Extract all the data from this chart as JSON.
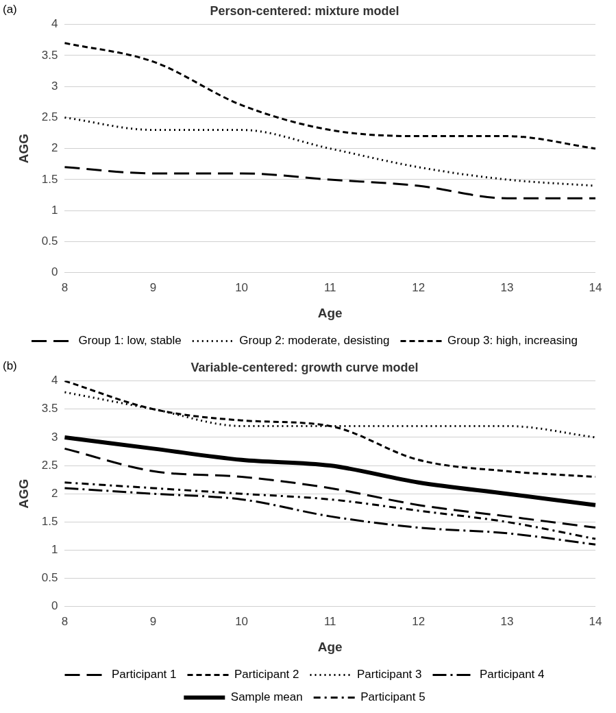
{
  "chart_data": [
    {
      "type": "line",
      "title": "Person-centered: mixture model",
      "xlabel": "Age",
      "ylabel": "AGG",
      "annotations": [
        "(a)"
      ],
      "categories": [
        "8",
        "9",
        "10",
        "11",
        "12",
        "13",
        "14"
      ],
      "series": [
        {
          "name": "Group 1: low, stable",
          "color": "#000000",
          "line_style": "dashed",
          "values": [
            1.7,
            1.6,
            1.6,
            1.5,
            1.4,
            1.2,
            1.2
          ]
        },
        {
          "name": "Group 2: moderate, desisting",
          "color": "#000000",
          "line_style": "dotted",
          "values": [
            2.5,
            2.3,
            2.3,
            2.0,
            1.7,
            1.5,
            1.4
          ]
        },
        {
          "name": "Group 3: high, increasing",
          "color": "#000000",
          "line_style": "dashed",
          "values": [
            3.7,
            3.4,
            2.7,
            2.3,
            2.2,
            2.2,
            2.0
          ]
        }
      ],
      "ylim": [
        0,
        4
      ],
      "yticks": [
        0,
        0.5,
        1,
        1.5,
        2,
        2.5,
        3,
        3.5,
        4
      ],
      "grid": "y",
      "legend": "bottom",
      "marker": "none"
    },
    {
      "type": "line",
      "title": "Variable-centered: growth curve model",
      "xlabel": "Age",
      "ylabel": "AGG",
      "annotations": [
        "(b)"
      ],
      "categories": [
        "8",
        "9",
        "10",
        "11",
        "12",
        "13",
        "14"
      ],
      "series": [
        {
          "name": "Participant 1",
          "color": "#000000",
          "line_style": "dashed",
          "values": [
            2.8,
            2.4,
            2.3,
            2.1,
            1.8,
            1.6,
            1.4
          ]
        },
        {
          "name": "Participant 2",
          "color": "#000000",
          "line_style": "dashed",
          "values": [
            4.0,
            3.5,
            3.3,
            3.2,
            2.6,
            2.4,
            2.3
          ]
        },
        {
          "name": "Participant 3",
          "color": "#000000",
          "line_style": "dotted",
          "values": [
            3.8,
            3.5,
            3.2,
            3.2,
            3.2,
            3.2,
            3.0
          ]
        },
        {
          "name": "Participant 4",
          "color": "#000000",
          "line_style": "dashed",
          "values": [
            2.1,
            2.0,
            1.9,
            1.6,
            1.4,
            1.3,
            1.1
          ]
        },
        {
          "name": "Sample mean",
          "color": "#000000",
          "line_style": "solid",
          "values": [
            3.0,
            2.8,
            2.6,
            2.5,
            2.2,
            2.0,
            1.8
          ]
        },
        {
          "name": "Participant 5",
          "color": "#000000",
          "line_style": "dashed",
          "values": [
            2.2,
            2.1,
            2.0,
            1.9,
            1.7,
            1.5,
            1.2
          ]
        }
      ],
      "ylim": [
        0,
        4
      ],
      "yticks": [
        0,
        0.5,
        1,
        1.5,
        2,
        2.5,
        3,
        3.5,
        4
      ],
      "grid": "y",
      "legend": "bottom",
      "marker": "none"
    }
  ]
}
